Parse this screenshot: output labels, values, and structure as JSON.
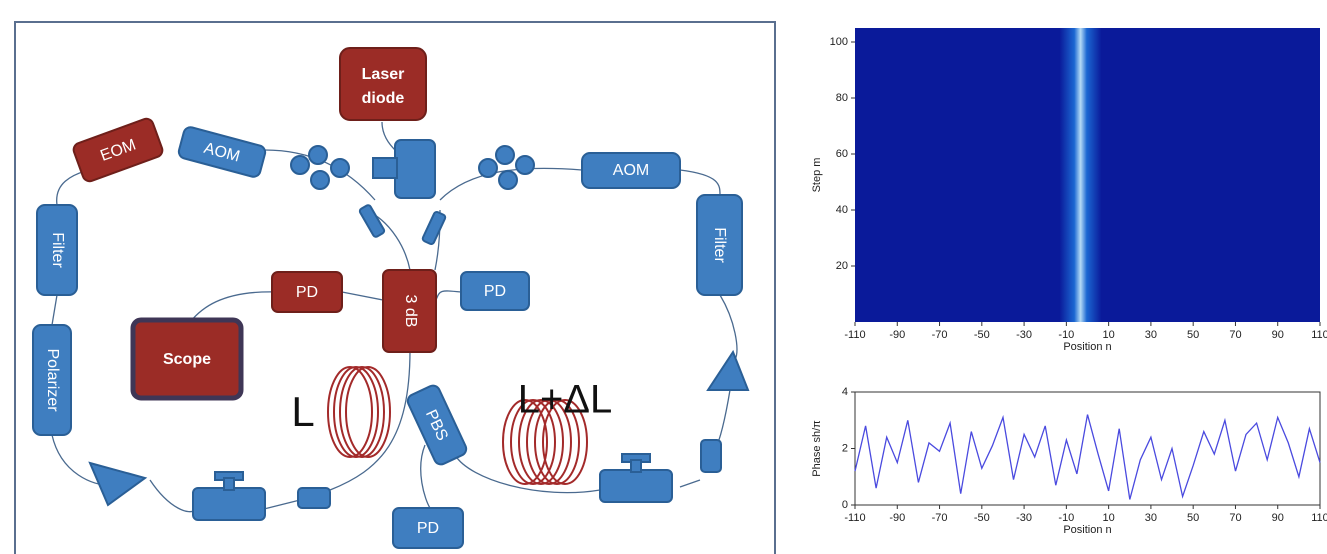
{
  "diagram": {
    "laser": [
      "Laser",
      "diode"
    ],
    "eom": "EOM",
    "aom_left": "AOM",
    "aom_right": "AOM",
    "filter_left": "Filter",
    "filter_right": "Filter",
    "polarizer": "Polarizer",
    "pd_left": "PD",
    "coupler": "3 dB",
    "pd_right": "PD",
    "scope": "Scope",
    "pbs": "PBS",
    "pd_bottom": "PD",
    "loop_short": "L",
    "loop_long": "L+ΔL"
  },
  "chart_data": [
    {
      "type": "heatmap",
      "ylabel": "Step m",
      "xlabel": "Position n",
      "xlim": [
        -110,
        110
      ],
      "ylim": [
        0,
        105
      ],
      "xticks": [
        -110,
        -90,
        -70,
        -50,
        -30,
        -10,
        10,
        30,
        50,
        70,
        90,
        110
      ],
      "yticks": [
        20,
        40,
        60,
        80,
        100
      ]
    },
    {
      "type": "line",
      "ylabel": "Phase sh/π",
      "xlabel": "Position n",
      "color": "#4a4adf",
      "xlim": [
        -110,
        110
      ],
      "ylim": [
        0,
        4
      ],
      "xticks": [
        -110,
        -90,
        -70,
        -50,
        -30,
        -10,
        10,
        30,
        50,
        70,
        90,
        110
      ],
      "yticks": [
        0,
        2,
        4
      ],
      "x": [
        -110,
        -105,
        -100,
        -95,
        -90,
        -85,
        -80,
        -75,
        -70,
        -65,
        -60,
        -55,
        -50,
        -45,
        -40,
        -35,
        -30,
        -25,
        -20,
        -15,
        -10,
        -5,
        0,
        5,
        10,
        15,
        20,
        25,
        30,
        35,
        40,
        45,
        50,
        55,
        60,
        65,
        70,
        75,
        80,
        85,
        90,
        95,
        100,
        105,
        110
      ],
      "values": [
        1.2,
        2.8,
        0.6,
        2.4,
        1.5,
        3.0,
        0.8,
        2.2,
        1.9,
        2.9,
        0.4,
        2.6,
        1.3,
        2.1,
        3.1,
        0.9,
        2.5,
        1.7,
        2.8,
        0.7,
        2.3,
        1.1,
        3.2,
        1.8,
        0.5,
        2.7,
        0.2,
        1.6,
        2.4,
        0.9,
        2.0,
        0.3,
        1.4,
        2.6,
        1.8,
        3.0,
        1.2,
        2.5,
        2.9,
        1.6,
        3.1,
        2.2,
        1.0,
        2.7,
        1.5
      ]
    }
  ]
}
